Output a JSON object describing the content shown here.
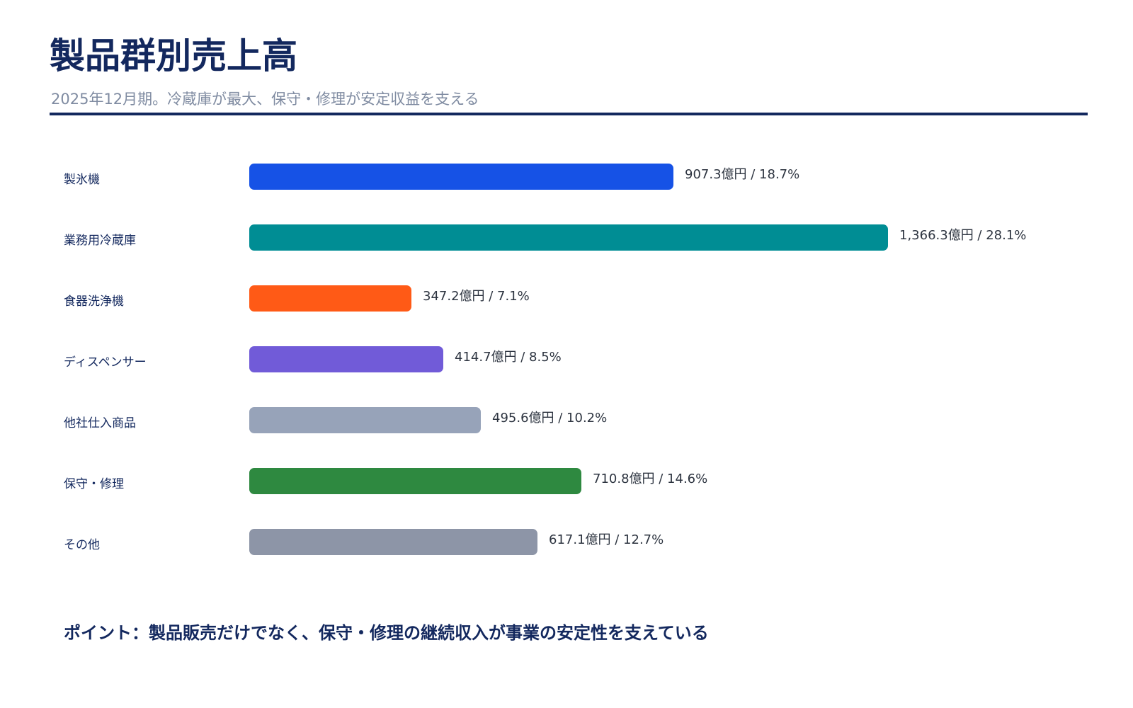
{
  "header": {
    "title": "製品群別売上高",
    "subtitle": "2025年12月期。冷蔵庫が最大、保守・修理が安定収益を支える"
  },
  "chart_data": {
    "type": "bar",
    "orientation": "horizontal",
    "title": "製品群別売上高",
    "subtitle": "2025年12月期。冷蔵庫が最大、保守・修理が安定収益を支える",
    "unit": "億円",
    "categories": [
      "製氷機",
      "業務用冷蔵庫",
      "食器洗浄機",
      "ディスペンサー",
      "他社仕入商品",
      "保守・修理",
      "その他"
    ],
    "values": [
      907.3,
      1366.3,
      347.2,
      414.7,
      495.6,
      710.8,
      617.1
    ],
    "shares": [
      18.7,
      28.1,
      7.1,
      8.5,
      10.2,
      14.6,
      12.7
    ],
    "value_labels": [
      "907.3億円 / 18.7%",
      "1,366.3億円 / 28.1%",
      "347.2億円 / 7.1%",
      "414.7億円 / 8.5%",
      "495.6億円 / 10.2%",
      "710.8億円 / 14.6%",
      "617.1億円 / 12.7%"
    ],
    "colors": [
      "#1652e6",
      "#008d94",
      "#ff5a16",
      "#715bd8",
      "#97a3b9",
      "#2e8940",
      "#8d95a7"
    ],
    "xlim": [
      0,
      1366.3
    ],
    "grid": false,
    "legend": "none"
  },
  "note": {
    "text": "ポイント：製品販売だけでなく、保守・修理の継続収入が事業の安定性を支えている"
  },
  "colors": {
    "title": "#13285e",
    "subtitle": "#7f8ba1",
    "rule": "#13285e"
  }
}
